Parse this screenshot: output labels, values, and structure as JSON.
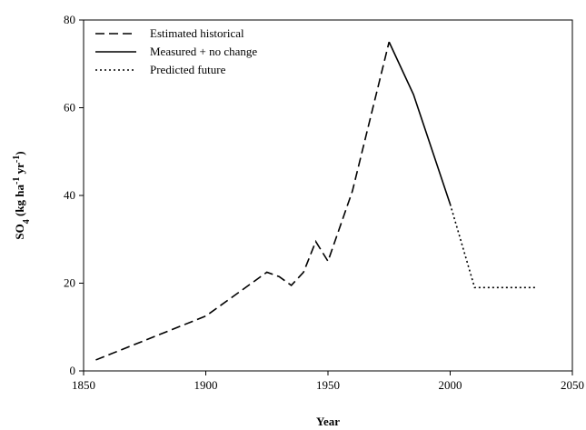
{
  "chart_data": {
    "type": "line",
    "xlabel": "Year",
    "ylabel_parts": [
      "SO",
      "4",
      " (kg ha",
      "-1",
      " yr",
      "-1",
      ")"
    ],
    "xlim": [
      1850,
      2050
    ],
    "xticks": [
      1850,
      1900,
      1950,
      2000,
      2050
    ],
    "ylim": [
      0,
      80
    ],
    "yticks": [
      0,
      20,
      40,
      60,
      80
    ],
    "legend": "upper left",
    "series": [
      {
        "name": "Estimated historical",
        "color": "#000000",
        "style": "dashed",
        "x": [
          1855,
          1900,
          1925,
          1930,
          1935,
          1940,
          1945,
          1950,
          1960,
          1975
        ],
        "values": [
          2.5,
          12.5,
          22.5,
          21.5,
          19.5,
          22.5,
          29.5,
          25,
          41,
          75
        ]
      },
      {
        "name": "Measured + no change",
        "color": "#000000",
        "style": "solid",
        "x": [
          1975,
          1985,
          2000
        ],
        "values": [
          75,
          63,
          38
        ]
      },
      {
        "name": "Predicted future",
        "color": "#000000",
        "style": "dotted",
        "x": [
          2000,
          2010,
          2035
        ],
        "values": [
          38,
          19,
          19
        ]
      }
    ]
  }
}
